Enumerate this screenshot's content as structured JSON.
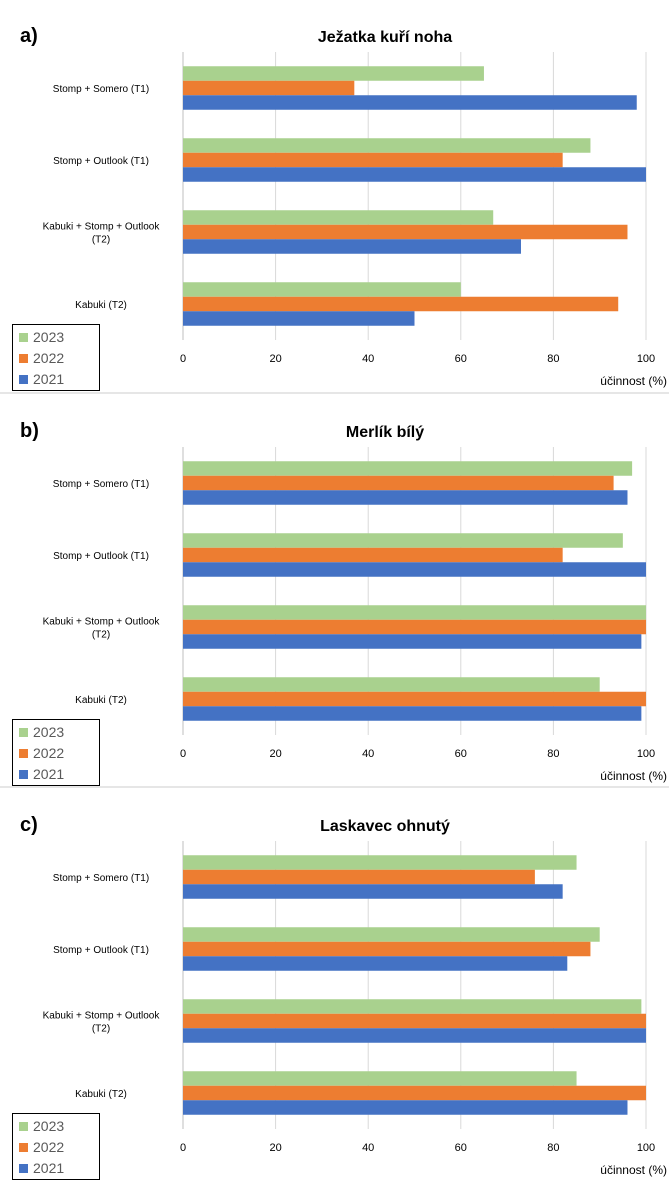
{
  "chart_data": [
    {
      "type": "bar",
      "panel_label": "a)",
      "title": "Ježatka kuří noha",
      "xlabel": "účinnost (%)",
      "xlim": [
        0,
        100
      ],
      "xticks": [
        "0",
        "20",
        "40",
        "60",
        "80",
        "100"
      ],
      "categories": [
        "Stomp + Somero (T1)",
        "Stomp + Outlook (T1)",
        "Kabuki + Stomp + Outlook (T2)",
        "Kabuki (T2)"
      ],
      "series": [
        {
          "name": "2023",
          "color": "#a9d18e",
          "values": [
            65,
            88,
            67,
            60
          ]
        },
        {
          "name": "2022",
          "color": "#ed7d31",
          "values": [
            37,
            82,
            96,
            94
          ]
        },
        {
          "name": "2021",
          "color": "#4472c4",
          "values": [
            98,
            100,
            73,
            50
          ]
        }
      ],
      "grid": "vertical",
      "legend_position": "bottom-left"
    },
    {
      "type": "bar",
      "panel_label": "b)",
      "title": "Merlík bílý",
      "xlabel": "účinnost (%)",
      "xlim": [
        0,
        100
      ],
      "xticks": [
        "0",
        "20",
        "40",
        "60",
        "80",
        "100"
      ],
      "categories": [
        "Stomp + Somero (T1)",
        "Stomp + Outlook (T1)",
        "Kabuki + Stomp + Outlook (T2)",
        "Kabuki (T2)"
      ],
      "series": [
        {
          "name": "2023",
          "color": "#a9d18e",
          "values": [
            97,
            95,
            100,
            90
          ]
        },
        {
          "name": "2022",
          "color": "#ed7d31",
          "values": [
            93,
            82,
            100,
            100
          ]
        },
        {
          "name": "2021",
          "color": "#4472c4",
          "values": [
            96,
            100,
            99,
            99
          ]
        }
      ],
      "grid": "vertical",
      "legend_position": "bottom-left"
    },
    {
      "type": "bar",
      "panel_label": "c)",
      "title": "Laskavec ohnutý",
      "xlabel": "účinnost (%)",
      "xlim": [
        0,
        100
      ],
      "xticks": [
        "0",
        "20",
        "40",
        "60",
        "80",
        "100"
      ],
      "categories": [
        "Stomp + Somero (T1)",
        "Stomp + Outlook (T1)",
        "Kabuki + Stomp + Outlook (T2)",
        "Kabuki (T2)"
      ],
      "series": [
        {
          "name": "2023",
          "color": "#a9d18e",
          "values": [
            85,
            90,
            99,
            85
          ]
        },
        {
          "name": "2022",
          "color": "#ed7d31",
          "values": [
            76,
            88,
            100,
            100
          ]
        },
        {
          "name": "2021",
          "color": "#4472c4",
          "values": [
            82,
            83,
            100,
            96
          ]
        }
      ],
      "grid": "vertical",
      "legend_position": "bottom-left"
    }
  ]
}
